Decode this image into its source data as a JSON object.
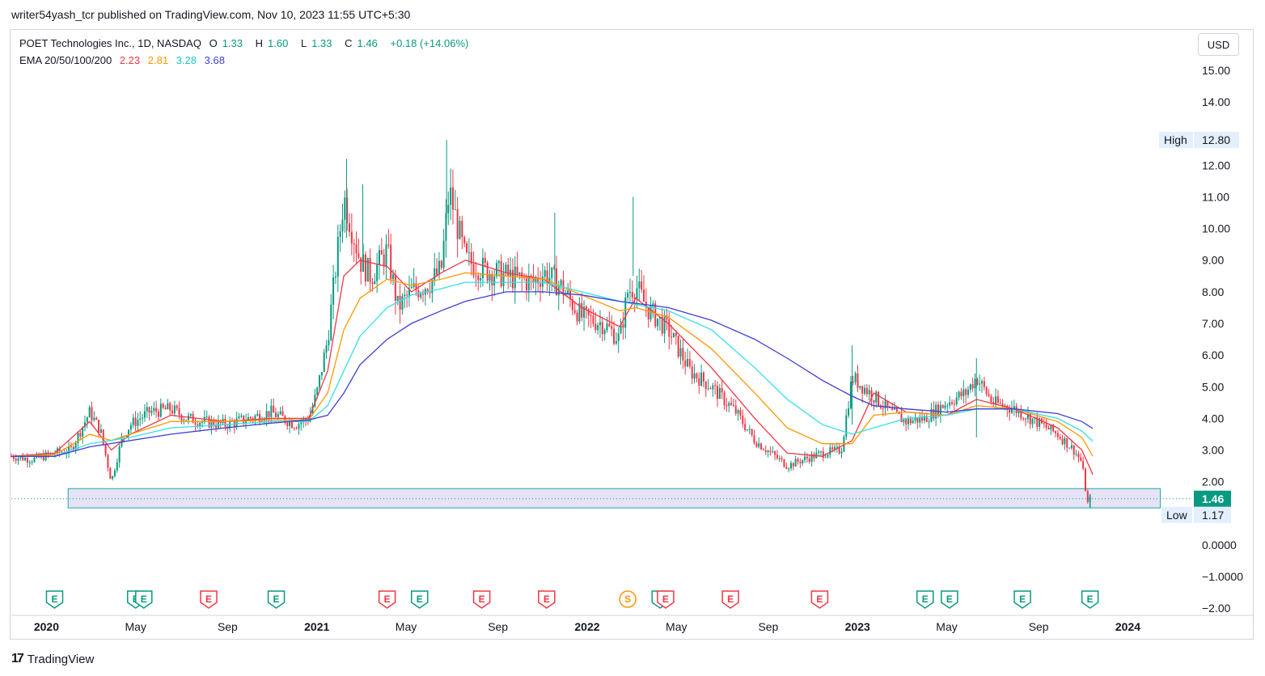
{
  "header": {
    "published_line": "writer54yash_tcr published on TradingView.com, Nov 10, 2023 11:55 UTC+5:30"
  },
  "legend": {
    "symbol_line": "POET Technologies Inc., 1D, NASDAQ",
    "open_label": "O",
    "open": "1.33",
    "high_label": "H",
    "high": "1.60",
    "low_label": "L",
    "low": "1.33",
    "close_label": "C",
    "close": "1.46",
    "change": "+0.18 (+14.06%)",
    "ema_label": "EMA 20/50/100/200",
    "ema20": "2.23",
    "ema50": "2.81",
    "ema100": "3.28",
    "ema200": "3.68"
  },
  "currency_button": "USD",
  "colors": {
    "up": "#089981",
    "down": "#f23645",
    "ema20": "#f23645",
    "ema50": "#ff9800",
    "ema100": "#33e0e8",
    "ema200": "#3f3fd6",
    "zone_fill": "#dcd9f2",
    "zone_border": "#21a7a7"
  },
  "price_tags": {
    "high_label": "High",
    "high_value": "12.80",
    "last_value": "1.46",
    "low_label": "Low",
    "low_value": "1.17"
  },
  "earnings_markers": [
    {
      "letter": "E",
      "date": 2020.03
    },
    {
      "letter": "E",
      "date": 2020.33
    },
    {
      "letter": "E",
      "date": 2020.36
    },
    {
      "letter": "E",
      "date": 2020.6
    },
    {
      "letter": "E",
      "date": 2020.85
    },
    {
      "letter": "E",
      "date": 2021.26
    },
    {
      "letter": "E",
      "date": 2021.38
    },
    {
      "letter": "E",
      "date": 2021.61
    },
    {
      "letter": "E",
      "date": 2021.85
    },
    {
      "letter": "S",
      "date": 2022.15
    },
    {
      "letter": "E",
      "date": 2022.27
    },
    {
      "letter": "E",
      "date": 2022.29
    },
    {
      "letter": "E",
      "date": 2022.53
    },
    {
      "letter": "E",
      "date": 2022.86
    },
    {
      "letter": "E",
      "date": 2023.25
    },
    {
      "letter": "E",
      "date": 2023.34
    },
    {
      "letter": "E",
      "date": 2023.61
    },
    {
      "letter": "E",
      "date": 2023.86
    }
  ],
  "footer": {
    "brand": "TradingView"
  },
  "chart_data": {
    "type": "line",
    "title": "POET Technologies Inc., 1D, NASDAQ",
    "x_axis_labels": [
      {
        "label": "2020",
        "date": 2020.0
      },
      {
        "label": "May",
        "date": 2020.33
      },
      {
        "label": "Sep",
        "date": 2020.67
      },
      {
        "label": "2021",
        "date": 2021.0
      },
      {
        "label": "May",
        "date": 2021.33
      },
      {
        "label": "Sep",
        "date": 2021.67
      },
      {
        "label": "2022",
        "date": 2022.0
      },
      {
        "label": "May",
        "date": 2022.33
      },
      {
        "label": "Sep",
        "date": 2022.67
      },
      {
        "label": "2023",
        "date": 2023.0
      },
      {
        "label": "May",
        "date": 2023.33
      },
      {
        "label": "Sep",
        "date": 2023.67
      },
      {
        "label": "2024",
        "date": 2024.0
      }
    ],
    "y_ticks": [
      "15.00",
      "14.00",
      "12.00",
      "11.00",
      "10.00",
      "9.00",
      "8.00",
      "7.00",
      "6.00",
      "5.00",
      "4.00",
      "3.00",
      "2.00",
      "0.0000",
      "−1.0000",
      "−2.00"
    ],
    "y_range": [
      -2.2,
      16.2
    ],
    "x_range": [
      2019.87,
      2024.22
    ],
    "grid": false,
    "series": [
      {
        "name": "POET close",
        "x": [
          2019.87,
          2019.95,
          2020.03,
          2020.09,
          2020.16,
          2020.2,
          2020.24,
          2020.28,
          2020.31,
          2020.38,
          2020.46,
          2020.52,
          2020.58,
          2020.66,
          2020.75,
          2020.83,
          2020.92,
          2020.97,
          2021.0,
          2021.04,
          2021.1,
          2021.13,
          2021.16,
          2021.2,
          2021.26,
          2021.3,
          2021.35,
          2021.42,
          2021.46,
          2021.49,
          2021.55,
          2021.62,
          2021.7,
          2021.8,
          2021.84,
          2021.9,
          2021.98,
          2022.06,
          2022.12,
          2022.15,
          2022.18,
          2022.22,
          2022.3,
          2022.38,
          2022.46,
          2022.55,
          2022.62,
          2022.68,
          2022.74,
          2022.8,
          2022.87,
          2022.94,
          2022.98,
          2023.02,
          2023.06,
          2023.12,
          2023.18,
          2023.25,
          2023.33,
          2023.4,
          2023.44,
          2023.5,
          2023.58,
          2023.66,
          2023.74,
          2023.8,
          2023.83,
          2023.85,
          2023.86
        ],
        "y": [
          2.8,
          2.7,
          2.9,
          3.0,
          4.2,
          3.6,
          2.0,
          3.4,
          3.8,
          4.2,
          4.3,
          4.0,
          3.9,
          3.8,
          4.0,
          4.2,
          3.8,
          4.0,
          4.8,
          6.5,
          11.0,
          10.0,
          9.0,
          8.5,
          9.3,
          7.5,
          8.0,
          8.3,
          8.7,
          11.2,
          9.0,
          8.7,
          8.5,
          8.3,
          8.6,
          8.2,
          7.2,
          7.0,
          6.5,
          8.0,
          8.2,
          7.5,
          6.8,
          5.5,
          5.0,
          4.2,
          3.3,
          2.9,
          2.5,
          2.7,
          2.9,
          3.0,
          5.3,
          5.0,
          4.7,
          4.2,
          3.9,
          4.0,
          4.5,
          4.8,
          5.3,
          4.5,
          4.3,
          3.9,
          3.5,
          3.0,
          2.6,
          1.3,
          1.46
        ]
      },
      {
        "name": "EMA 20",
        "x": [
          2019.87,
          2020.03,
          2020.16,
          2020.24,
          2020.31,
          2020.46,
          2020.66,
          2020.83,
          2020.97,
          2021.04,
          2021.1,
          2021.16,
          2021.26,
          2021.35,
          2021.46,
          2021.55,
          2021.7,
          2021.84,
          2021.98,
          2022.12,
          2022.18,
          2022.3,
          2022.46,
          2022.62,
          2022.74,
          2022.87,
          2022.98,
          2023.06,
          2023.18,
          2023.33,
          2023.44,
          2023.58,
          2023.74,
          2023.83,
          2023.87
        ],
        "y": [
          2.8,
          2.9,
          3.9,
          3.0,
          3.5,
          4.1,
          3.9,
          4.0,
          4.0,
          5.5,
          8.5,
          9.0,
          8.8,
          8.0,
          8.6,
          9.0,
          8.6,
          8.4,
          7.5,
          6.9,
          7.8,
          7.0,
          5.6,
          4.0,
          2.9,
          2.8,
          3.3,
          4.8,
          4.2,
          4.1,
          4.6,
          4.3,
          3.7,
          3.0,
          2.23
        ]
      },
      {
        "name": "EMA 50",
        "x": [
          2019.87,
          2020.03,
          2020.16,
          2020.24,
          2020.31,
          2020.46,
          2020.66,
          2020.83,
          2020.97,
          2021.04,
          2021.1,
          2021.16,
          2021.26,
          2021.35,
          2021.46,
          2021.55,
          2021.7,
          2021.84,
          2021.98,
          2022.12,
          2022.18,
          2022.3,
          2022.46,
          2022.62,
          2022.74,
          2022.87,
          2022.98,
          2023.06,
          2023.18,
          2023.33,
          2023.44,
          2023.58,
          2023.74,
          2023.83,
          2023.87
        ],
        "y": [
          2.8,
          2.85,
          3.5,
          3.3,
          3.5,
          3.9,
          3.9,
          3.95,
          3.95,
          4.8,
          6.8,
          7.8,
          8.4,
          8.2,
          8.4,
          8.6,
          8.5,
          8.4,
          7.9,
          7.4,
          7.5,
          7.2,
          6.2,
          4.8,
          3.7,
          3.2,
          3.2,
          4.1,
          4.2,
          4.1,
          4.4,
          4.3,
          3.9,
          3.4,
          2.81
        ]
      },
      {
        "name": "EMA 100",
        "x": [
          2019.87,
          2020.03,
          2020.16,
          2020.31,
          2020.46,
          2020.66,
          2020.83,
          2020.97,
          2021.04,
          2021.1,
          2021.16,
          2021.26,
          2021.35,
          2021.46,
          2021.55,
          2021.7,
          2021.84,
          2021.98,
          2022.12,
          2022.3,
          2022.46,
          2022.62,
          2022.74,
          2022.87,
          2022.98,
          2023.06,
          2023.18,
          2023.33,
          2023.44,
          2023.58,
          2023.74,
          2023.83,
          2023.87
        ],
        "y": [
          2.8,
          2.8,
          3.2,
          3.4,
          3.7,
          3.8,
          3.9,
          3.9,
          4.4,
          5.5,
          6.6,
          7.5,
          7.9,
          8.1,
          8.3,
          8.3,
          8.3,
          8.0,
          7.7,
          7.4,
          6.8,
          5.6,
          4.6,
          3.8,
          3.5,
          3.7,
          4.0,
          4.1,
          4.3,
          4.3,
          4.0,
          3.6,
          3.28
        ]
      },
      {
        "name": "EMA 200",
        "x": [
          2019.87,
          2020.03,
          2020.16,
          2020.31,
          2020.46,
          2020.66,
          2020.83,
          2020.97,
          2021.04,
          2021.1,
          2021.16,
          2021.26,
          2021.35,
          2021.46,
          2021.55,
          2021.7,
          2021.84,
          2021.98,
          2022.12,
          2022.3,
          2022.46,
          2022.62,
          2022.74,
          2022.87,
          2022.98,
          2023.06,
          2023.18,
          2023.33,
          2023.44,
          2023.58,
          2023.74,
          2023.83,
          2023.87
        ],
        "y": [
          2.8,
          2.8,
          3.1,
          3.3,
          3.5,
          3.7,
          3.85,
          3.95,
          4.1,
          4.8,
          5.7,
          6.5,
          7.0,
          7.4,
          7.7,
          8.0,
          8.0,
          7.9,
          7.7,
          7.5,
          7.1,
          6.5,
          5.9,
          5.2,
          4.7,
          4.4,
          4.3,
          4.2,
          4.3,
          4.3,
          4.15,
          3.9,
          3.68
        ]
      }
    ],
    "support_zone": {
      "x_start": 2020.08,
      "x_end": 2024.12,
      "y_low": 1.17,
      "y_high": 1.78
    },
    "last_price": 1.46,
    "high": 12.8,
    "low": 1.17
  }
}
